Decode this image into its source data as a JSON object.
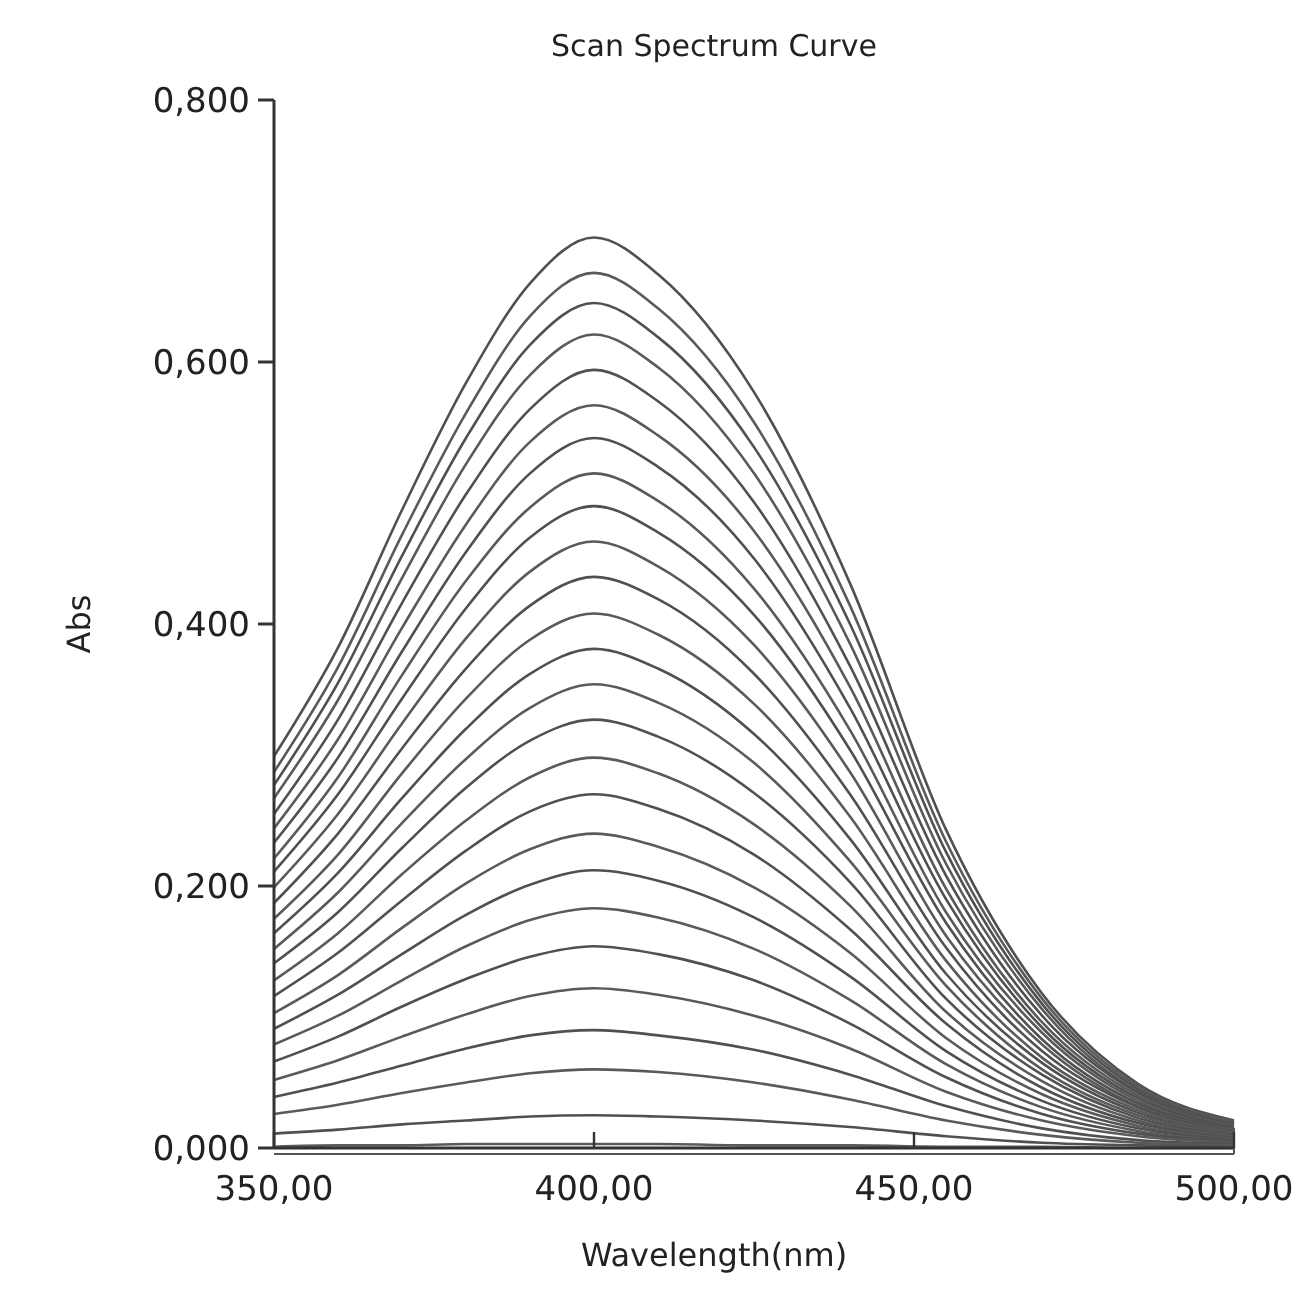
{
  "chart_data": {
    "type": "line",
    "title": "Scan Spectrum Curve",
    "xlabel": "Wavelength(nm)",
    "ylabel": "Abs",
    "xlim": [
      350,
      500
    ],
    "ylim": [
      0,
      0.8
    ],
    "xticks": [
      {
        "value": 350,
        "label": "350,00"
      },
      {
        "value": 400,
        "label": "400,00"
      },
      {
        "value": 450,
        "label": "450,00"
      },
      {
        "value": 500,
        "label": "500,00"
      }
    ],
    "yticks": [
      {
        "value": 0,
        "label": "0,000"
      },
      {
        "value": 0.2,
        "label": "0,200"
      },
      {
        "value": 0.4,
        "label": "0,400"
      },
      {
        "value": 0.6,
        "label": "0,600"
      },
      {
        "value": 0.8,
        "label": "0,800"
      }
    ],
    "x": [
      350,
      360,
      370,
      380,
      390,
      400,
      410,
      425,
      440,
      455,
      470,
      485,
      500
    ],
    "grid": false,
    "marker": "none",
    "line_style": "solid",
    "series": [
      {
        "color": "#505050",
        "values": [
          0.299,
          0.382,
          0.487,
          0.584,
          0.66,
          0.695,
          0.667,
          0.577,
          0.431,
          0.243,
          0.118,
          0.049,
          0.021
        ]
      },
      {
        "color": "#5a5a5a",
        "values": [
          0.287,
          0.367,
          0.468,
          0.561,
          0.635,
          0.668,
          0.641,
          0.554,
          0.414,
          0.234,
          0.114,
          0.047,
          0.02
        ]
      },
      {
        "color": "#505050",
        "values": [
          0.277,
          0.355,
          0.452,
          0.542,
          0.613,
          0.645,
          0.619,
          0.535,
          0.4,
          0.226,
          0.11,
          0.045,
          0.019
        ]
      },
      {
        "color": "#5a5a5a",
        "values": [
          0.267,
          0.342,
          0.435,
          0.522,
          0.59,
          0.621,
          0.596,
          0.515,
          0.385,
          0.217,
          0.106,
          0.043,
          0.019
        ]
      },
      {
        "color": "#505050",
        "values": [
          0.255,
          0.327,
          0.416,
          0.499,
          0.564,
          0.594,
          0.57,
          0.493,
          0.368,
          0.208,
          0.101,
          0.042,
          0.018
        ]
      },
      {
        "color": "#5a5a5a",
        "values": [
          0.244,
          0.312,
          0.397,
          0.476,
          0.539,
          0.567,
          0.544,
          0.471,
          0.352,
          0.198,
          0.096,
          0.04,
          0.017
        ]
      },
      {
        "color": "#505050",
        "values": [
          0.233,
          0.298,
          0.379,
          0.455,
          0.515,
          0.542,
          0.52,
          0.45,
          0.336,
          0.19,
          0.092,
          0.038,
          0.016
        ]
      },
      {
        "color": "#5a5a5a",
        "values": [
          0.221,
          0.283,
          0.361,
          0.433,
          0.489,
          0.515,
          0.494,
          0.427,
          0.319,
          0.18,
          0.088,
          0.036,
          0.015
        ]
      },
      {
        "color": "#505050",
        "values": [
          0.211,
          0.27,
          0.343,
          0.412,
          0.466,
          0.49,
          0.47,
          0.407,
          0.304,
          0.172,
          0.083,
          0.034,
          0.015
        ]
      },
      {
        "color": "#5a5a5a",
        "values": [
          0.199,
          0.255,
          0.324,
          0.389,
          0.44,
          0.463,
          0.444,
          0.384,
          0.287,
          0.162,
          0.079,
          0.032,
          0.014
        ]
      },
      {
        "color": "#505050",
        "values": [
          0.187,
          0.24,
          0.305,
          0.366,
          0.414,
          0.436,
          0.419,
          0.362,
          0.27,
          0.153,
          0.074,
          0.031,
          0.013
        ]
      },
      {
        "color": "#5a5a5a",
        "values": [
          0.175,
          0.224,
          0.286,
          0.343,
          0.388,
          0.408,
          0.392,
          0.339,
          0.253,
          0.143,
          0.069,
          0.029,
          0.012
        ]
      },
      {
        "color": "#505050",
        "values": [
          0.164,
          0.21,
          0.267,
          0.32,
          0.362,
          0.381,
          0.366,
          0.316,
          0.236,
          0.133,
          0.065,
          0.027,
          0.011
        ]
      },
      {
        "color": "#5a5a5a",
        "values": [
          0.152,
          0.195,
          0.248,
          0.297,
          0.336,
          0.354,
          0.34,
          0.294,
          0.219,
          0.124,
          0.06,
          0.025,
          0.011
        ]
      },
      {
        "color": "#505050",
        "values": [
          0.141,
          0.18,
          0.229,
          0.275,
          0.311,
          0.327,
          0.314,
          0.271,
          0.203,
          0.114,
          0.056,
          0.023,
          0.01
        ]
      },
      {
        "color": "#5a5a5a",
        "values": [
          0.128,
          0.164,
          0.209,
          0.25,
          0.283,
          0.298,
          0.286,
          0.247,
          0.185,
          0.104,
          0.051,
          0.021,
          0.009
        ]
      },
      {
        "color": "#505050",
        "values": [
          0.116,
          0.149,
          0.189,
          0.227,
          0.257,
          0.27,
          0.259,
          0.224,
          0.167,
          0.095,
          0.046,
          0.019,
          0.008
        ]
      },
      {
        "color": "#5a5a5a",
        "values": [
          0.103,
          0.132,
          0.168,
          0.202,
          0.228,
          0.24,
          0.23,
          0.199,
          0.149,
          0.084,
          0.041,
          0.017,
          0.007
        ]
      },
      {
        "color": "#505050",
        "values": [
          0.091,
          0.117,
          0.148,
          0.178,
          0.201,
          0.212,
          0.204,
          0.176,
          0.131,
          0.074,
          0.036,
          0.015,
          0.006
        ]
      },
      {
        "color": "#5a5a5a",
        "values": [
          0.079,
          0.101,
          0.128,
          0.154,
          0.174,
          0.183,
          0.176,
          0.152,
          0.113,
          0.064,
          0.031,
          0.013,
          0.005
        ]
      },
      {
        "color": "#505050",
        "values": [
          0.066,
          0.085,
          0.108,
          0.129,
          0.146,
          0.154,
          0.148,
          0.128,
          0.095,
          0.054,
          0.026,
          0.011,
          0.005
        ]
      },
      {
        "color": "#5a5a5a",
        "values": [
          0.052,
          0.067,
          0.085,
          0.102,
          0.116,
          0.122,
          0.117,
          0.101,
          0.076,
          0.043,
          0.021,
          0.009,
          0.004
        ]
      },
      {
        "color": "#505050",
        "values": [
          0.039,
          0.05,
          0.063,
          0.076,
          0.086,
          0.09,
          0.086,
          0.075,
          0.056,
          0.032,
          0.015,
          0.006,
          0.003
        ]
      },
      {
        "color": "#5a5a5a",
        "values": [
          0.026,
          0.033,
          0.042,
          0.05,
          0.057,
          0.06,
          0.058,
          0.05,
          0.037,
          0.021,
          0.01,
          0.004,
          0.002
        ]
      },
      {
        "color": "#505050",
        "values": [
          0.011,
          0.014,
          0.018,
          0.021,
          0.024,
          0.025,
          0.024,
          0.021,
          0.016,
          0.009,
          0.004,
          0.002,
          0.001
        ]
      },
      {
        "color": "#5a5a5a",
        "values": [
          0.001,
          0.002,
          0.002,
          0.003,
          0.003,
          0.003,
          0.003,
          0.002,
          0.002,
          0.001,
          0.001,
          0,
          0
        ]
      }
    ]
  }
}
